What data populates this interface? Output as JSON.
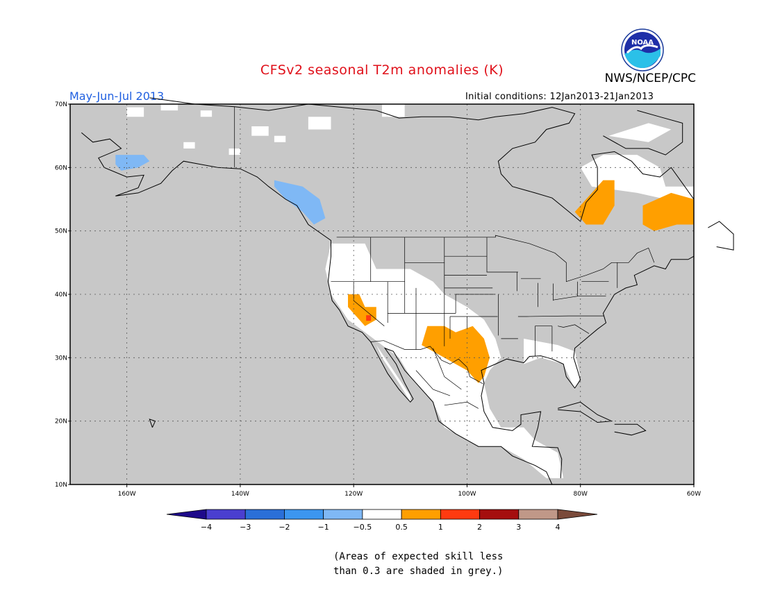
{
  "title": "CFSv2 seasonal T2m anomalies (K)",
  "organization": "NWS/NCEP/CPC",
  "logo_text": "NOAA",
  "period": "May-Jun-Jul 2013",
  "initial_conditions": "Initial conditions: 12Jan2013-21Jan2013",
  "skill_note_line1": "(Areas of expected skill less",
  "skill_note_line2": "than 0.3 are shaded in grey.)",
  "colors": {
    "title": "#e0101a",
    "period": "#1f5fe0",
    "grey_mask": "#c8c8c8",
    "land_white": "#ffffff"
  },
  "map": {
    "lon_range": [
      -170,
      -60
    ],
    "lat_range": [
      10,
      70
    ],
    "lat_labels": [
      "70N",
      "60N",
      "50N",
      "40N",
      "30N",
      "20N",
      "10N"
    ],
    "lon_labels": [
      "160W",
      "140W",
      "120W",
      "100W",
      "80W",
      "60W"
    ],
    "lat_values": [
      70,
      60,
      50,
      40,
      30,
      20,
      10
    ],
    "lon_values": [
      -160,
      -140,
      -120,
      -100,
      -80,
      -60
    ]
  },
  "colorbar": {
    "colors": [
      "#1e0a8a",
      "#4a3fd0",
      "#2a6fd8",
      "#3c96f0",
      "#7fb8f5",
      "#ffffff",
      "#ff9f00",
      "#ff3a10",
      "#a50e0e",
      "#c09888",
      "#7a4a3a"
    ],
    "labels": [
      "−4",
      "−3",
      "−2",
      "−1",
      "−0.5",
      "0.5",
      "1",
      "2",
      "3",
      "4"
    ]
  },
  "anomaly_regions": [
    {
      "name": "great-basin-warm",
      "value": 1,
      "lons": [
        -121,
        -117
      ],
      "lats": [
        36,
        40
      ]
    },
    {
      "name": "southern-plains-warm",
      "value": 1,
      "lons": [
        -108,
        -97
      ],
      "lats": [
        27,
        36
      ]
    },
    {
      "name": "hudson-bay-warm",
      "value": 1,
      "lons": [
        -80,
        -75
      ],
      "lats": [
        51,
        56
      ]
    },
    {
      "name": "labrador-warm",
      "value": 1,
      "lons": [
        -68,
        -60
      ],
      "lats": [
        50,
        55
      ]
    },
    {
      "name": "alaska-cool",
      "value": -0.5,
      "lons": [
        -162,
        -156
      ],
      "lats": [
        59,
        62
      ]
    },
    {
      "name": "bc-coast-cool",
      "value": -0.5,
      "lons": [
        -134,
        -127
      ],
      "lats": [
        52,
        57
      ]
    }
  ]
}
